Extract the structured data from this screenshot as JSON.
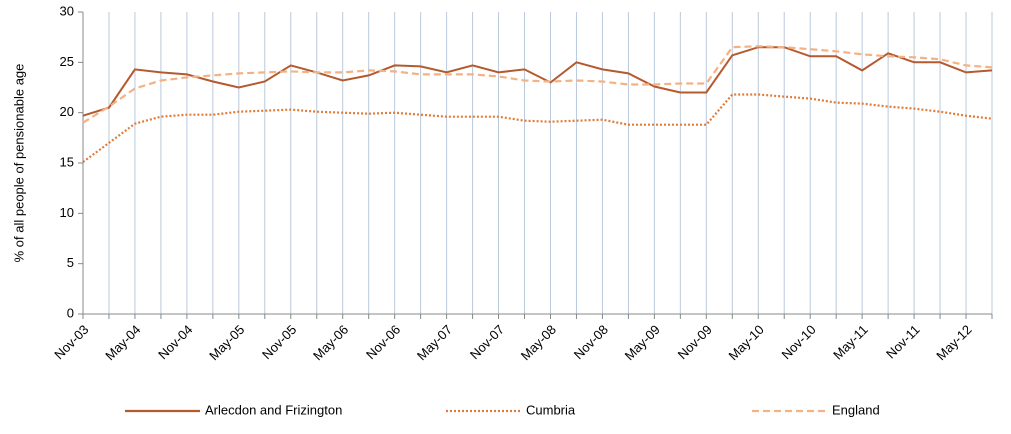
{
  "chart_data": {
    "type": "line",
    "y_label": "% of all people of pensionable age",
    "categories": [
      "Nov-03",
      null,
      "May-04",
      null,
      "Nov-04",
      null,
      "May-05",
      null,
      "Nov-05",
      null,
      "May-06",
      null,
      "Nov-06",
      null,
      "May-07",
      null,
      "Nov-07",
      null,
      "May-08",
      null,
      "Nov-08",
      null,
      "May-09",
      null,
      "Nov-09",
      null,
      "May-10",
      null,
      "Nov-10",
      null,
      "May-11",
      null,
      "Nov-11",
      null,
      "May-12",
      null
    ],
    "series": [
      {
        "name": "Arlecdon and Frizington",
        "color": "#b45a2e",
        "style": "solid",
        "values": [
          19.7,
          20.5,
          24.3,
          24.0,
          23.8,
          23.1,
          22.5,
          23.1,
          24.7,
          24.0,
          23.2,
          23.7,
          24.7,
          24.6,
          24.0,
          24.7,
          24.0,
          24.3,
          23.0,
          25.0,
          24.3,
          23.9,
          22.6,
          22.0,
          22.0,
          25.7,
          26.5,
          26.5,
          25.6,
          25.6,
          24.2,
          25.9,
          25.0,
          25.0,
          24.0,
          24.2
        ]
      },
      {
        "name": "Cumbria",
        "color": "#e07b39",
        "style": "dotted",
        "values": [
          15.1,
          17.0,
          18.9,
          19.6,
          19.8,
          19.8,
          20.1,
          20.2,
          20.3,
          20.1,
          20.0,
          19.9,
          20.0,
          19.8,
          19.6,
          19.6,
          19.6,
          19.2,
          19.1,
          19.2,
          19.3,
          18.8,
          18.8,
          18.8,
          18.8,
          21.8,
          21.8,
          21.6,
          21.4,
          21.0,
          20.9,
          20.6,
          20.4,
          20.1,
          19.7,
          19.4
        ]
      },
      {
        "name": "England",
        "color": "#f4b183",
        "style": "dashed",
        "values": [
          19.0,
          20.6,
          22.4,
          23.2,
          23.5,
          23.7,
          23.9,
          24.0,
          24.1,
          24.0,
          24.0,
          24.2,
          24.1,
          23.8,
          23.8,
          23.8,
          23.6,
          23.2,
          23.1,
          23.2,
          23.1,
          22.8,
          22.8,
          22.9,
          22.9,
          26.5,
          26.6,
          26.5,
          26.3,
          26.1,
          25.8,
          25.6,
          25.5,
          25.3,
          24.7,
          24.5
        ]
      }
    ],
    "ylim": [
      0,
      30
    ],
    "yticks": [
      0,
      5,
      10,
      15,
      20,
      25,
      30
    ],
    "grid": "x",
    "legend": "bottom"
  }
}
